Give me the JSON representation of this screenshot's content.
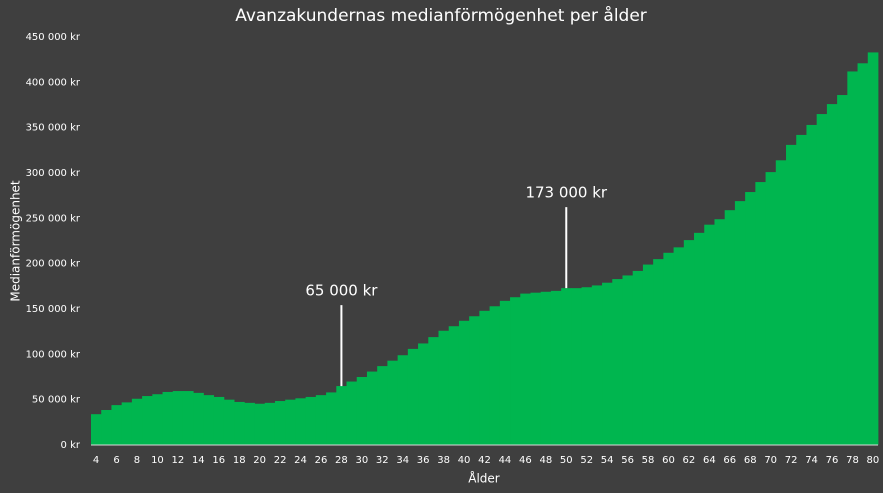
{
  "chart_data": {
    "type": "bar",
    "title": "Avanzakundernas medianförmögenhet per ålder",
    "x_label": "Ålder",
    "y_label": "Medianförmögenhet",
    "color": "#00b64f",
    "categories": [
      "4",
      null,
      "6",
      null,
      "8",
      null,
      "10",
      null,
      "12",
      null,
      "14",
      null,
      "16",
      null,
      "18",
      null,
      "20",
      null,
      "22",
      null,
      "24",
      null,
      "26",
      null,
      "28",
      null,
      "30",
      null,
      "32",
      null,
      "34",
      null,
      "36",
      null,
      "38",
      null,
      "40",
      null,
      "42",
      null,
      "44",
      null,
      "46",
      null,
      "48",
      null,
      "50",
      null,
      "52",
      null,
      "54",
      null,
      "56",
      null,
      "58",
      null,
      "60",
      null,
      "62",
      null,
      "64",
      null,
      "66",
      null,
      "68",
      null,
      "70",
      null,
      "72",
      null,
      "74",
      null,
      "76",
      null,
      "78",
      null,
      "80"
    ],
    "values": [
      34000,
      38600,
      44000,
      47000,
      51000,
      54000,
      56000,
      58500,
      59500,
      59500,
      57500,
      55000,
      53000,
      50000,
      47500,
      46500,
      45500,
      46500,
      48500,
      50000,
      51500,
      53000,
      55000,
      58000,
      65000,
      70000,
      75000,
      81000,
      87000,
      93000,
      99000,
      106000,
      112000,
      119000,
      126000,
      131000,
      137000,
      142000,
      148000,
      153000,
      159000,
      163000,
      167000,
      168000,
      169000,
      170000,
      173000,
      173000,
      174000,
      176000,
      179000,
      183000,
      187000,
      192000,
      199000,
      205000,
      212000,
      218000,
      226000,
      234000,
      243000,
      249000,
      259000,
      269000,
      279000,
      290000,
      301000,
      314000,
      331000,
      342000,
      353000,
      365000,
      376000,
      386000,
      412000,
      421000,
      433000
    ],
    "ylim": [
      0,
      450000
    ],
    "yticks": [
      {
        "value": 0,
        "label": "0 kr"
      },
      {
        "value": 50000,
        "label": "50 000 kr"
      },
      {
        "value": 100000,
        "label": "100 000 kr"
      },
      {
        "value": 150000,
        "label": "150 000 kr"
      },
      {
        "value": 200000,
        "label": "200 000 kr"
      },
      {
        "value": 250000,
        "label": "250 000 kr"
      },
      {
        "value": 300000,
        "label": "300 000 kr"
      },
      {
        "value": 350000,
        "label": "350 000 kr"
      },
      {
        "value": 400000,
        "label": "400 000 kr"
      },
      {
        "value": 450000,
        "label": "450 000 kr"
      }
    ],
    "annotations": [
      {
        "label": "65 000 kr",
        "category": "28"
      },
      {
        "label": "173 000 kr",
        "category": "50"
      }
    ]
  }
}
